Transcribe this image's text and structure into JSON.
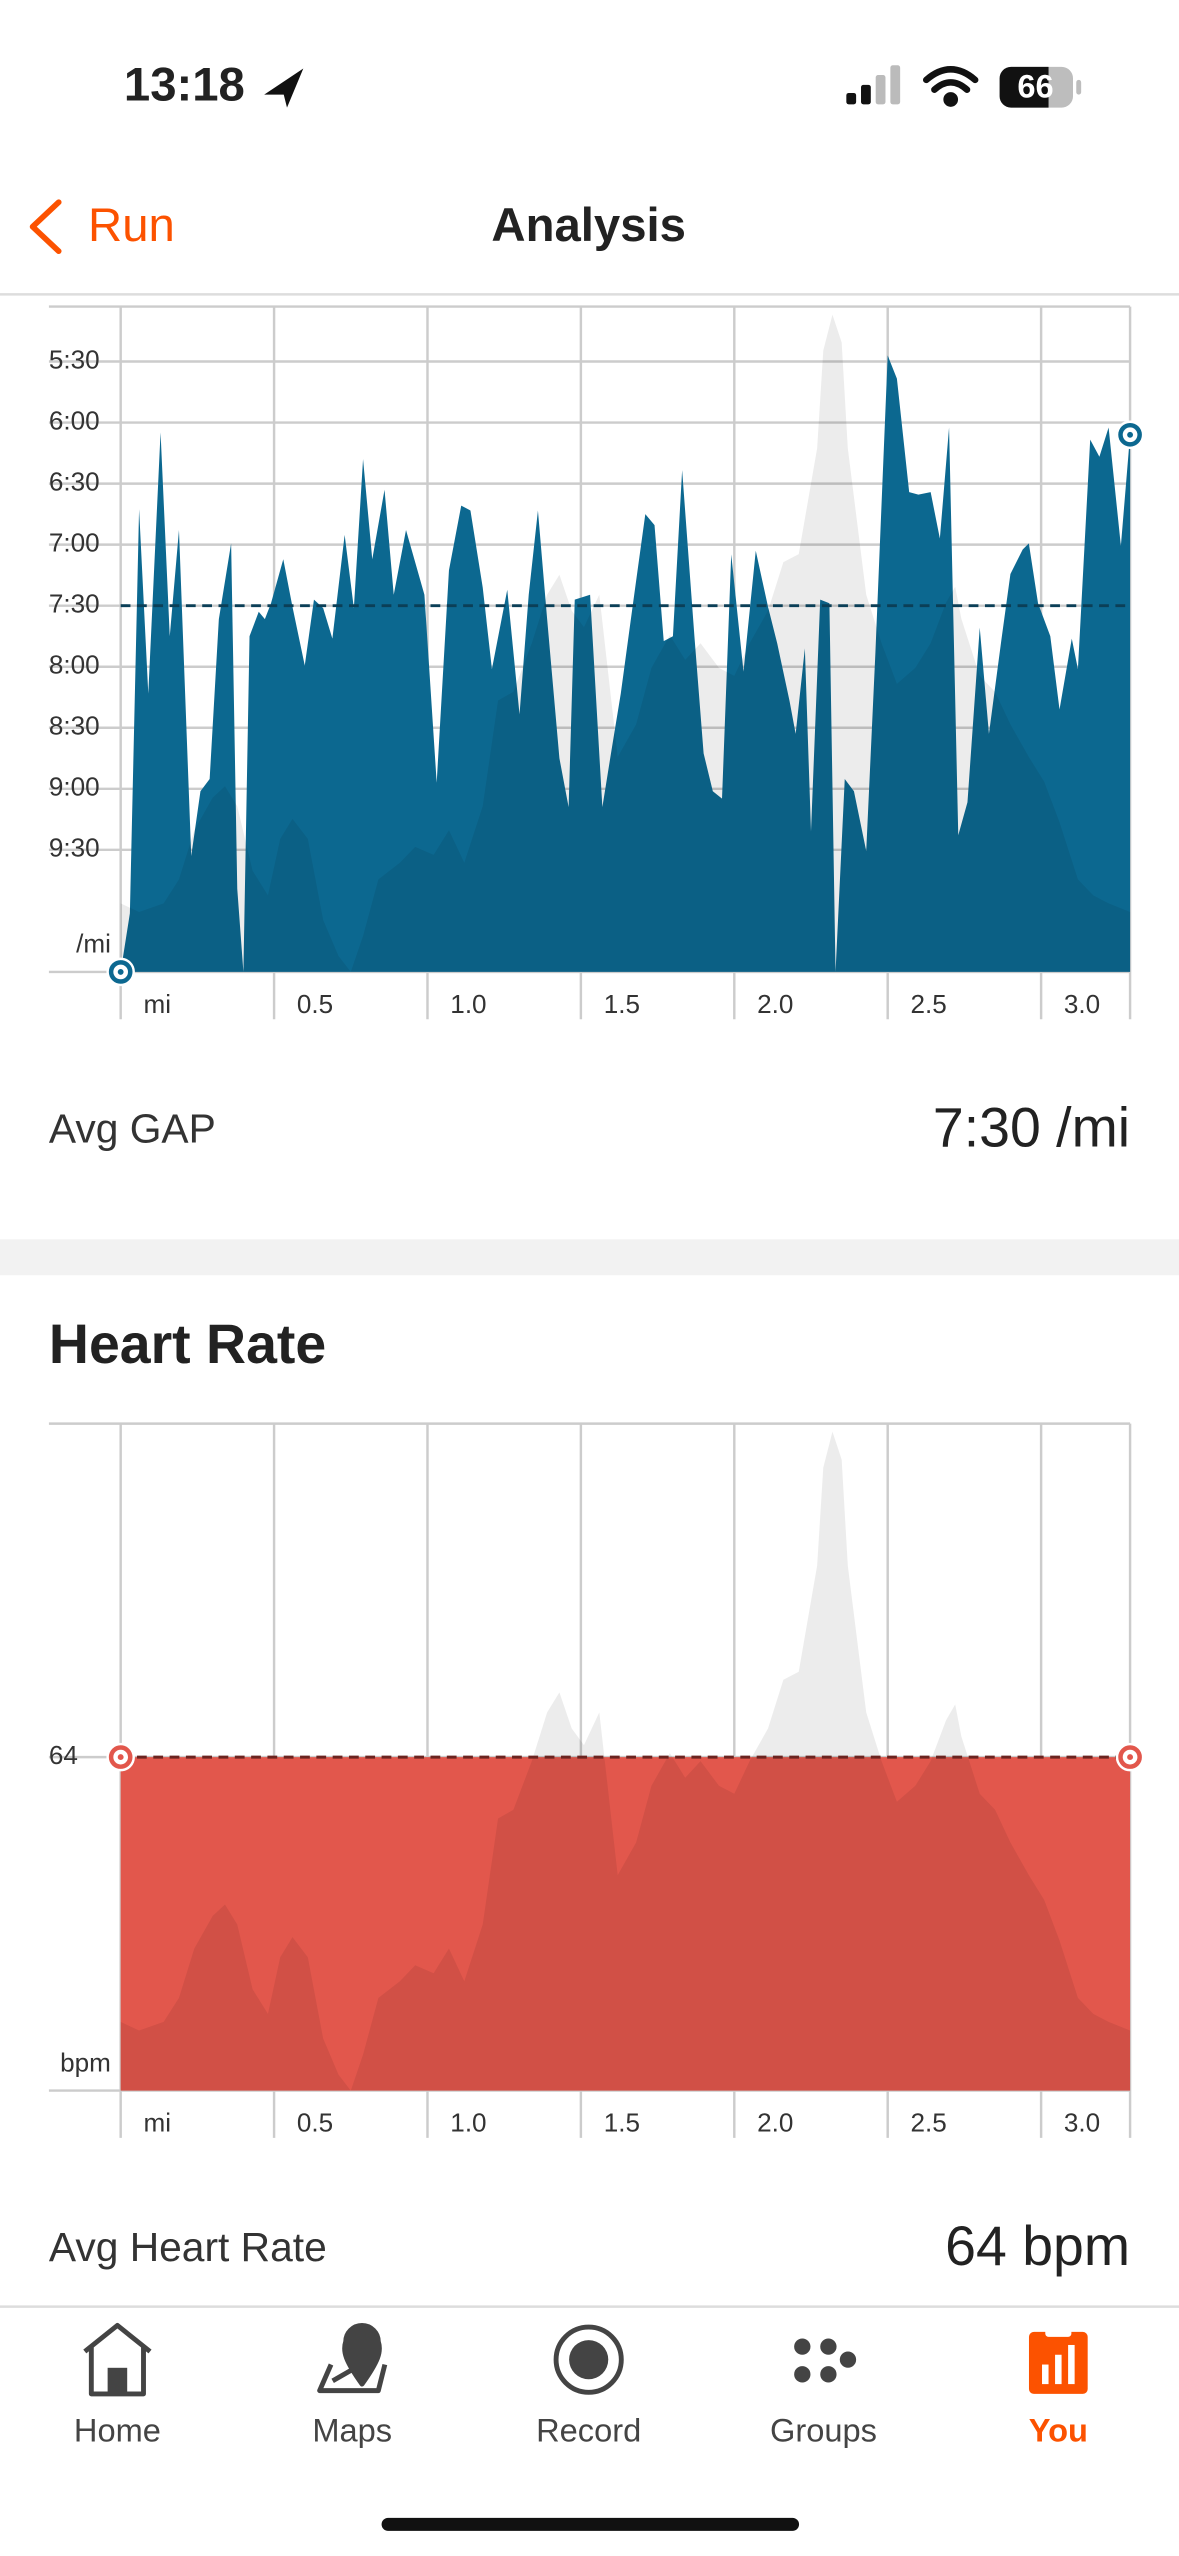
{
  "status_bar": {
    "time": "13:18",
    "battery": "66"
  },
  "nav": {
    "back": "Run",
    "title": "Analysis"
  },
  "chart_data": [
    {
      "type": "area",
      "grid": true,
      "x_unit": "mi",
      "y_unit": "/mi",
      "xlim": [
        0,
        3.29
      ],
      "ylim": [
        10.5,
        5.05
      ],
      "y2lim": [
        0,
        100
      ],
      "xticks": [
        0.5,
        {
          "value": 1,
          "label": "1.0"
        },
        1.5,
        {
          "value": 2,
          "label": "2.0"
        },
        2.5,
        {
          "value": 3,
          "label": "3.0"
        }
      ],
      "yticks": [
        {
          "value": 5.5,
          "label": "5:30"
        },
        {
          "value": 6,
          "label": "6:00"
        },
        {
          "value": 6.5,
          "label": "6:30"
        },
        {
          "value": 7,
          "label": "7:00"
        },
        {
          "value": 7.5,
          "label": "7:30"
        },
        {
          "value": 8,
          "label": "8:00"
        },
        {
          "value": 8.5,
          "label": "8:30"
        },
        {
          "value": 9,
          "label": "9:00"
        },
        {
          "value": 9.5,
          "label": "9:30"
        }
      ],
      "x": [
        0,
        0.03,
        0.06,
        0.09,
        0.13,
        0.16,
        0.19,
        0.23,
        0.26,
        0.29,
        0.32,
        0.36,
        0.38,
        0.4,
        0.42,
        0.45,
        0.47,
        0.49,
        0.53,
        0.56,
        0.6,
        0.63,
        0.66,
        0.69,
        0.73,
        0.76,
        0.79,
        0.82,
        0.86,
        0.89,
        0.93,
        0.99,
        1.03,
        1.07,
        1.11,
        1.14,
        1.18,
        1.21,
        1.26,
        1.3,
        1.33,
        1.36,
        1.39,
        1.43,
        1.46,
        1.48,
        1.53,
        1.57,
        1.6,
        1.63,
        1.67,
        1.71,
        1.74,
        1.77,
        1.8,
        1.83,
        1.87,
        1.9,
        1.93,
        1.96,
        1.99,
        2.03,
        2.07,
        2.11,
        2.14,
        2.18,
        2.2,
        2.23,
        2.25,
        2.28,
        2.31,
        2.33,
        2.36,
        2.39,
        2.43,
        2.46,
        2.5,
        2.53,
        2.57,
        2.6,
        2.64,
        2.67,
        2.7,
        2.73,
        2.76,
        2.8,
        2.83,
        2.87,
        2.9,
        2.94,
        2.96,
        2.99,
        3.03,
        3.06,
        3.1,
        3.12,
        3.16,
        3.19,
        3.22,
        3.26,
        3.29
      ],
      "series": [
        {
          "color": "#0c6890",
          "values": [
            10.5,
            10.02,
            6.71,
            8.22,
            6.08,
            7.75,
            6.88,
            9.55,
            9.02,
            8.92,
            7.61,
            6.99,
            9.82,
            10.5,
            7.75,
            7.55,
            7.61,
            7.48,
            7.12,
            7.51,
            7.99,
            7.45,
            7.52,
            7.77,
            6.92,
            7.52,
            6.3,
            7.12,
            6.55,
            7.41,
            6.88,
            7.41,
            8.95,
            7.21,
            6.68,
            6.72,
            7.35,
            8.02,
            7.37,
            8.39,
            7.41,
            6.72,
            7.61,
            8.75,
            9.15,
            7.45,
            7.41,
            9.15,
            8.68,
            8.22,
            7.48,
            6.75,
            6.84,
            7.79,
            7.75,
            6.39,
            7.75,
            8.71,
            9.02,
            9.08,
            7.08,
            8.04,
            7.05,
            7.51,
            7.81,
            8.28,
            8.55,
            7.85,
            9.35,
            7.45,
            7.48,
            10.5,
            8.92,
            9.02,
            9.51,
            7.88,
            5.45,
            5.64,
            6.57,
            6.59,
            6.57,
            6.95,
            6.04,
            9.38,
            9.11,
            7.68,
            8.55,
            7.79,
            7.24,
            7.04,
            6.99,
            7.48,
            7.75,
            8.35,
            7.77,
            8.02,
            6.14,
            6.28,
            6.04,
            7.01,
            6.1
          ]
        }
      ],
      "elevation": {
        "color": "#00000013",
        "x": [
          0,
          0.06,
          0.14,
          0.19,
          0.24,
          0.3,
          0.34,
          0.38,
          0.43,
          0.48,
          0.52,
          0.56,
          0.61,
          0.66,
          0.71,
          0.75,
          0.79,
          0.84,
          0.91,
          0.96,
          1.02,
          1.07,
          1.12,
          1.18,
          1.23,
          1.28,
          1.34,
          1.39,
          1.43,
          1.47,
          1.51,
          1.56,
          1.62,
          1.68,
          1.73,
          1.79,
          1.84,
          1.89,
          1.95,
          2,
          2.05,
          2.11,
          2.16,
          2.21,
          2.27,
          2.29,
          2.32,
          2.35,
          2.37,
          2.43,
          2.48,
          2.53,
          2.59,
          2.64,
          2.69,
          2.72,
          2.74,
          2.8,
          2.85,
          2.9,
          2.96,
          3.01,
          3.06,
          3.12,
          3.17,
          3.22,
          3.29
        ],
        "values": [
          10.3,
          9,
          10.3,
          13.9,
          21.3,
          26.2,
          27.9,
          24.9,
          15.2,
          11.5,
          20,
          23,
          20,
          7.8,
          2.4,
          0,
          5.4,
          13.9,
          16.4,
          18.8,
          17.6,
          21.3,
          16.4,
          24.9,
          40.8,
          42.1,
          49.4,
          56.7,
          59.7,
          54.3,
          51.8,
          56.7,
          32.3,
          37.2,
          45.7,
          50.6,
          46.9,
          49.4,
          45.7,
          44.5,
          49.4,
          54.3,
          61.6,
          62.8,
          78.7,
          93.4,
          98.8,
          94.6,
          78.7,
          56.7,
          49.4,
          43.3,
          45.7,
          49.4,
          55.5,
          57.9,
          53.1,
          44.5,
          42.1,
          37.2,
          32.3,
          28.6,
          22.5,
          13.9,
          11.5,
          10.3,
          9
        ]
      },
      "average": 7.5,
      "average_color": "#0b3f57",
      "stat_label": "Avg GAP",
      "average_label": "7:30 /mi"
    },
    {
      "type": "area",
      "grid": true,
      "title": "Heart Rate",
      "x_unit": "mi",
      "y_unit": "bpm",
      "xlim": [
        0,
        3.29
      ],
      "ylim": [
        62,
        66
      ],
      "xticks": [
        0.5,
        {
          "value": 1,
          "label": "1.0"
        },
        1.5,
        {
          "value": 2,
          "label": "2.0"
        },
        2.5,
        {
          "value": 3,
          "label": "3.0"
        }
      ],
      "yticks": [
        64
      ],
      "x": [
        0,
        3.29
      ],
      "series": [
        {
          "color": "#e2574c",
          "values": [
            64,
            64
          ]
        }
      ],
      "average": 64,
      "average_color": "#6b2420",
      "stat_label": "Avg Heart Rate",
      "average_label": "64 bpm"
    }
  ],
  "tabs": [
    {
      "label": "Home"
    },
    {
      "label": "Maps"
    },
    {
      "label": "Record"
    },
    {
      "label": "Groups"
    },
    {
      "label": "You"
    }
  ],
  "active_tab": 4,
  "accent_color": "#fc5200"
}
